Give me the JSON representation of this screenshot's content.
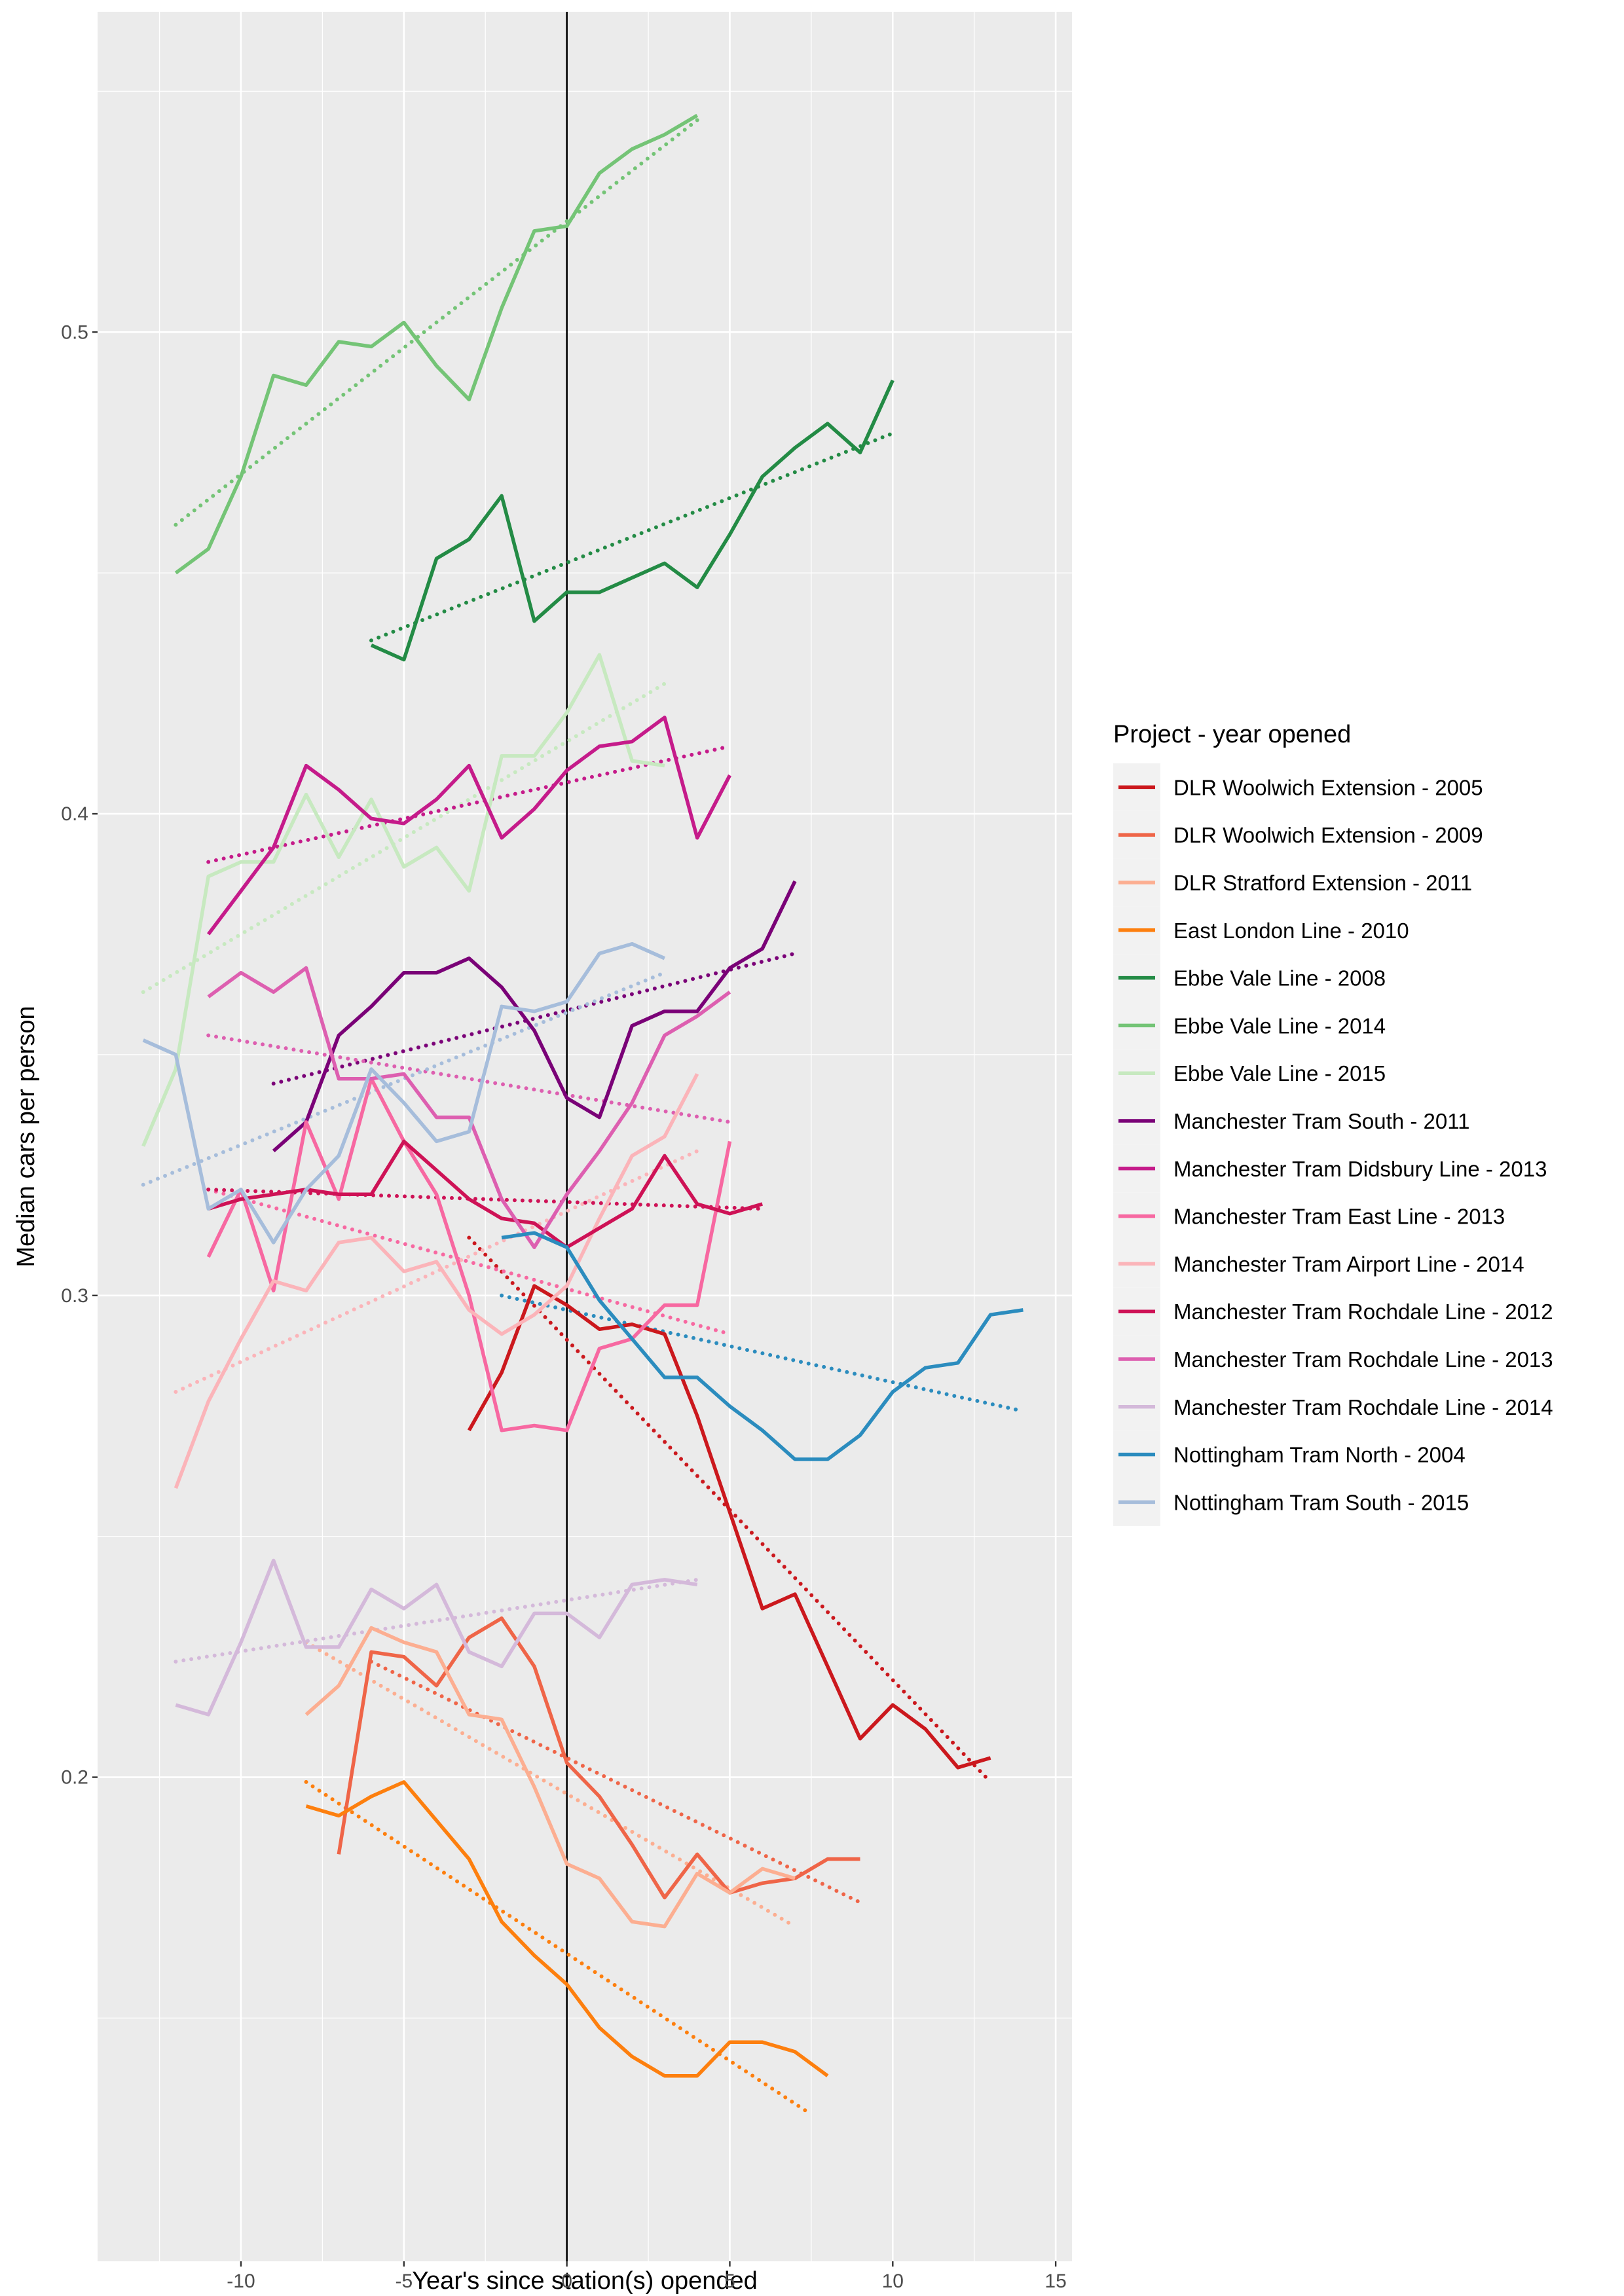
{
  "chart_data": {
    "type": "line",
    "xlabel": "Year's since station(s) opended",
    "ylabel": "Median cars per person",
    "legend_title": "Project - year opened",
    "xlim": [
      -14.4,
      15.5
    ],
    "ylim": [
      0.0995,
      0.5665
    ],
    "xticks": [
      -10,
      -5,
      0,
      5,
      10,
      15
    ],
    "yticks": [
      0.2,
      0.3,
      0.4,
      0.5
    ],
    "xminor": [
      -12.5,
      -7.5,
      -2.5,
      2.5,
      7.5,
      12.5
    ],
    "yminor": [
      0.15,
      0.25,
      0.35,
      0.45,
      0.55
    ],
    "vline": 0,
    "grid": true,
    "legend": "right",
    "series": [
      {
        "name": "DLR Woolwich Extension - 2005",
        "color": "#cb181d",
        "x": [
          -3,
          -2,
          -1,
          0,
          1,
          2,
          3,
          4,
          5,
          6,
          7,
          8,
          9,
          10,
          11,
          12,
          13
        ],
        "values": [
          0.272,
          0.284,
          0.302,
          0.298,
          0.293,
          0.294,
          0.292,
          0.275,
          0.255,
          0.235,
          0.238,
          0.223,
          0.208,
          0.215,
          0.21,
          0.202,
          0.204
        ],
        "trend": {
          "x": [
            -3,
            13
          ],
          "values": [
            0.312,
            0.199
          ]
        }
      },
      {
        "name": "DLR Woolwich Extension - 2009",
        "color": "#ef6548",
        "x": [
          -7,
          -6,
          -5,
          -4,
          -3,
          -2,
          -1,
          0,
          1,
          2,
          3,
          4,
          5,
          6,
          7,
          8,
          9
        ],
        "values": [
          0.184,
          0.226,
          0.225,
          0.219,
          0.229,
          0.233,
          0.223,
          0.203,
          0.196,
          0.186,
          0.175,
          0.184,
          0.176,
          0.178,
          0.179,
          0.183,
          0.183
        ],
        "trend": {
          "x": [
            -6,
            9
          ],
          "values": [
            0.224,
            0.174
          ]
        }
      },
      {
        "name": "DLR Stratford Extension - 2011",
        "color": "#fcae91",
        "x": [
          -8,
          -7,
          -6,
          -5,
          -4,
          -3,
          -2,
          -1,
          0,
          1,
          2,
          3,
          4,
          5,
          6,
          7
        ],
        "values": [
          0.213,
          0.219,
          0.231,
          0.228,
          0.226,
          0.213,
          0.212,
          0.198,
          0.182,
          0.179,
          0.17,
          0.169,
          0.18,
          0.176,
          0.181,
          0.179
        ],
        "trend": {
          "x": [
            -8,
            7
          ],
          "values": [
            0.228,
            0.169
          ]
        }
      },
      {
        "name": "East London Line - 2010",
        "color": "#fd7f0e",
        "x": [
          -8,
          -7,
          -6,
          -5,
          -4,
          -3,
          -2,
          -1,
          0,
          1,
          2,
          3,
          4,
          5,
          6,
          7,
          8
        ],
        "values": [
          0.194,
          0.192,
          0.196,
          0.199,
          0.191,
          0.183,
          0.17,
          0.163,
          0.157,
          0.148,
          0.142,
          0.138,
          0.138,
          0.145,
          0.145,
          0.143,
          0.138
        ],
        "trend": {
          "x": [
            -8,
            7.5
          ],
          "values": [
            0.199,
            0.13
          ]
        }
      },
      {
        "name": "Ebbe Vale Line - 2008",
        "color": "#238b45",
        "x": [
          -6,
          -5,
          -4,
          -3,
          -2,
          -1,
          0,
          1,
          2,
          3,
          4,
          5,
          6,
          7,
          8,
          9,
          10
        ],
        "values": [
          0.435,
          0.432,
          0.453,
          0.457,
          0.466,
          0.44,
          0.446,
          0.446,
          0.449,
          0.452,
          0.447,
          0.458,
          0.47,
          0.476,
          0.481,
          0.475,
          0.49
        ],
        "trend": {
          "x": [
            -6,
            10
          ],
          "values": [
            0.436,
            0.479
          ]
        }
      },
      {
        "name": "Ebbe Vale Line - 2014",
        "color": "#74c476",
        "x": [
          -12,
          -11,
          -10,
          -9,
          -8,
          -7,
          -6,
          -5,
          -4,
          -3,
          -2,
          -1,
          0,
          1,
          2,
          3,
          4
        ],
        "values": [
          0.45,
          0.455,
          0.47,
          0.491,
          0.489,
          0.498,
          0.497,
          0.502,
          0.493,
          0.486,
          0.505,
          0.521,
          0.522,
          0.533,
          0.538,
          0.541,
          0.545
        ],
        "trend": {
          "x": [
            -12,
            4
          ],
          "values": [
            0.46,
            0.544
          ]
        }
      },
      {
        "name": "Ebbe Vale Line - 2015",
        "color": "#c7e9c0",
        "x": [
          -13,
          -12,
          -11,
          -10,
          -9,
          -8,
          -7,
          -6,
          -5,
          -4,
          -3,
          -2,
          -1,
          0,
          1,
          2,
          3
        ],
        "values": [
          0.331,
          0.347,
          0.387,
          0.39,
          0.39,
          0.404,
          0.391,
          0.403,
          0.389,
          0.393,
          0.384,
          0.412,
          0.412,
          0.421,
          0.433,
          0.411,
          0.41
        ],
        "trend": {
          "x": [
            -13,
            3
          ],
          "values": [
            0.363,
            0.427
          ]
        }
      },
      {
        "name": "Manchester Tram South - 2011",
        "color": "#7a0177",
        "x": [
          -9,
          -8,
          -7,
          -6,
          -5,
          -4,
          -3,
          -2,
          -1,
          0,
          1,
          2,
          3,
          4,
          5,
          6,
          7
        ],
        "values": [
          0.33,
          0.336,
          0.354,
          0.36,
          0.367,
          0.367,
          0.37,
          0.364,
          0.355,
          0.341,
          0.337,
          0.356,
          0.359,
          0.359,
          0.368,
          0.372,
          0.386
        ],
        "trend": {
          "x": [
            -9,
            7
          ],
          "values": [
            0.344,
            0.371
          ]
        }
      },
      {
        "name": "Manchester Tram Didsbury Line - 2013",
        "color": "#c51b8a",
        "x": [
          -11,
          -10,
          -9,
          -8,
          -7,
          -6,
          -5,
          -4,
          -3,
          -2,
          -1,
          0,
          1,
          2,
          3,
          4,
          5
        ],
        "values": [
          0.375,
          0.384,
          0.393,
          0.41,
          0.405,
          0.399,
          0.398,
          0.403,
          0.41,
          0.395,
          0.401,
          0.409,
          0.414,
          0.415,
          0.42,
          0.395,
          0.408
        ],
        "trend": {
          "x": [
            -11,
            5
          ],
          "values": [
            0.39,
            0.414
          ]
        }
      },
      {
        "name": "Manchester Tram East Line - 2013",
        "color": "#f768a1",
        "x": [
          -11,
          -10,
          -9,
          -8,
          -7,
          -6,
          -5,
          -4,
          -3,
          -2,
          -1,
          0,
          1,
          2,
          3,
          4,
          5
        ],
        "values": [
          0.308,
          0.322,
          0.301,
          0.336,
          0.32,
          0.345,
          0.332,
          0.321,
          0.3,
          0.272,
          0.273,
          0.272,
          0.289,
          0.291,
          0.298,
          0.298,
          0.332
        ],
        "trend": {
          "x": [
            -11,
            5
          ],
          "values": [
            0.322,
            0.292
          ]
        }
      },
      {
        "name": "Manchester Tram Airport Line - 2014",
        "color": "#fbb4b9",
        "x": [
          -12,
          -11,
          -10,
          -9,
          -8,
          -7,
          -6,
          -5,
          -4,
          -3,
          -2,
          -1,
          0,
          1,
          2,
          3,
          4
        ],
        "values": [
          0.26,
          0.278,
          0.291,
          0.303,
          0.301,
          0.311,
          0.312,
          0.305,
          0.307,
          0.297,
          0.292,
          0.296,
          0.302,
          0.316,
          0.329,
          0.333,
          0.346
        ],
        "trend": {
          "x": [
            -12,
            4
          ],
          "values": [
            0.28,
            0.33
          ]
        }
      },
      {
        "name": "Manchester Tram Rochdale Line - 2012",
        "color": "#ce1256",
        "x": [
          -11,
          -10,
          -9,
          -8,
          -7,
          -6,
          -5,
          -4,
          -3,
          -2,
          -1,
          0,
          1,
          2,
          3,
          4,
          5,
          6
        ],
        "values": [
          0.318,
          0.32,
          0.321,
          0.322,
          0.321,
          0.321,
          0.332,
          0.326,
          0.32,
          0.316,
          0.315,
          0.31,
          0.314,
          0.318,
          0.329,
          0.319,
          0.317,
          0.319
        ],
        "trend": {
          "x": [
            -11,
            6
          ],
          "values": [
            0.322,
            0.318
          ]
        }
      },
      {
        "name": "Manchester Tram Rochdale Line - 2013",
        "color": "#dd5fb0",
        "x": [
          -11,
          -10,
          -9,
          -8,
          -7,
          -6,
          -5,
          -4,
          -3,
          -2,
          -1,
          0,
          1,
          2,
          3,
          4,
          5
        ],
        "values": [
          0.362,
          0.367,
          0.363,
          0.368,
          0.345,
          0.345,
          0.346,
          0.337,
          0.337,
          0.32,
          0.31,
          0.321,
          0.33,
          0.34,
          0.354,
          0.358,
          0.363
        ],
        "trend": {
          "x": [
            -11,
            5
          ],
          "values": [
            0.354,
            0.336
          ]
        }
      },
      {
        "name": "Manchester Tram Rochdale Line - 2014",
        "color": "#d4b9da",
        "x": [
          -12,
          -11,
          -10,
          -9,
          -8,
          -7,
          -6,
          -5,
          -4,
          -3,
          -2,
          -1,
          0,
          1,
          2,
          3,
          4
        ],
        "values": [
          0.215,
          0.213,
          0.228,
          0.245,
          0.227,
          0.227,
          0.239,
          0.235,
          0.24,
          0.226,
          0.223,
          0.234,
          0.234,
          0.229,
          0.24,
          0.241,
          0.24
        ],
        "trend": {
          "x": [
            -12,
            4
          ],
          "values": [
            0.224,
            0.241
          ]
        }
      },
      {
        "name": "Nottingham Tram North - 2004",
        "color": "#2b8cbe",
        "x": [
          -2,
          -1,
          0,
          1,
          2,
          3,
          4,
          5,
          6,
          7,
          8,
          9,
          10,
          11,
          12,
          13,
          14
        ],
        "values": [
          0.312,
          0.313,
          0.31,
          0.299,
          0.291,
          0.283,
          0.283,
          0.277,
          0.272,
          0.266,
          0.266,
          0.271,
          0.28,
          0.285,
          0.286,
          0.296,
          0.297
        ],
        "trend": {
          "x": [
            -2,
            14
          ],
          "values": [
            0.3,
            0.276
          ]
        }
      },
      {
        "name": "Nottingham Tram South - 2015",
        "color": "#a6bddb",
        "x": [
          -13,
          -12,
          -11,
          -10,
          -9,
          -8,
          -7,
          -6,
          -5,
          -4,
          -3,
          -2,
          -1,
          0,
          1,
          2,
          3
        ],
        "values": [
          0.353,
          0.35,
          0.318,
          0.322,
          0.311,
          0.322,
          0.329,
          0.347,
          0.34,
          0.332,
          0.334,
          0.36,
          0.359,
          0.361,
          0.371,
          0.373,
          0.37
        ],
        "trend": {
          "x": [
            -13,
            3
          ],
          "values": [
            0.323,
            0.367
          ]
        }
      }
    ]
  }
}
